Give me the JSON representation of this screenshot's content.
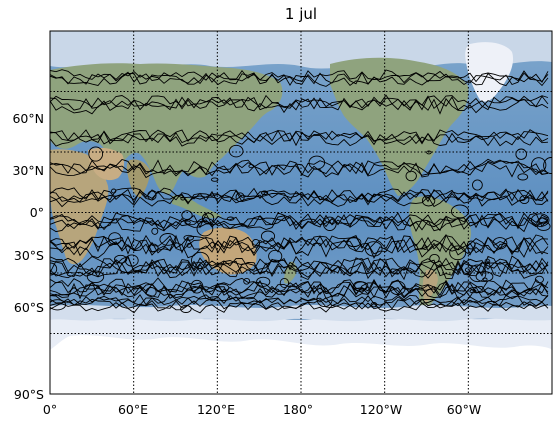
{
  "title": "1 jul",
  "map": {
    "projection": "cylindrical",
    "central_longitude": 180,
    "lat_range": [
      -90,
      90
    ],
    "lon_range": [
      0,
      360
    ],
    "background": "shaded relief",
    "overlay": "black contour lines over ocean",
    "gridline_style": "dotted black",
    "colors": {
      "ocean": "#5b8fc0",
      "ocean_deep": "#4c7fb3",
      "land": "#8fa37e",
      "desert": "#c8ad84",
      "ice": "#eef1f8",
      "sea_ice": "#d6e0ee",
      "contour": "#000000"
    }
  },
  "lat_ticks": [
    "60°N",
    "30°N",
    "0°",
    "30°S",
    "60°S",
    "90°S"
  ],
  "lon_ticks": [
    "0°",
    "60°E",
    "120°E",
    "180°",
    "120°W",
    "60°W"
  ]
}
